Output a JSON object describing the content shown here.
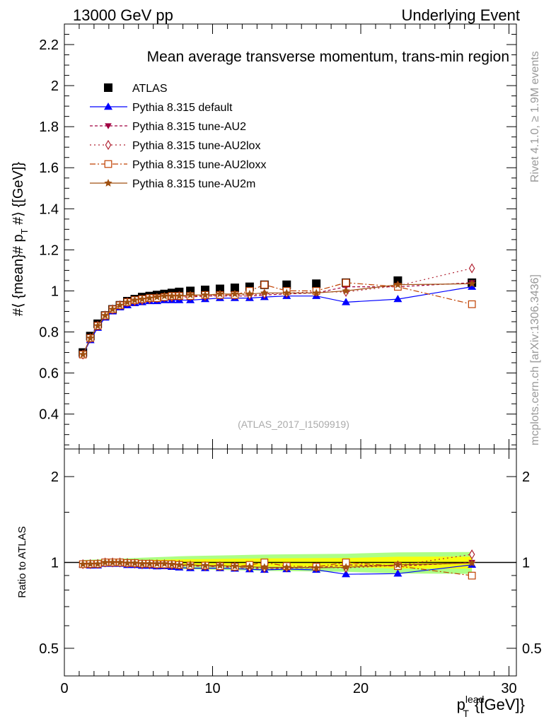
{
  "header": {
    "left": "13000 GeV pp",
    "right": "Underlying Event"
  },
  "side_labels": {
    "top": "Rivet 4.1.0, ≥ 1.9M events",
    "bottom": "mcplots.cern.ch [arXiv:1306.3436]"
  },
  "colors": {
    "atlas": "#000000",
    "default": "#0000ff",
    "au2": "#a00040",
    "au2lox": "#b02030",
    "au2loxx": "#c04000",
    "au2m": "#a05010",
    "band_inner": "#ffff00",
    "band_outer": "#99ff66"
  },
  "chart_data": [
    {
      "type": "line",
      "title": "Mean average transverse momentum, trans-min region",
      "watermark": "(ATLAS_2017_I1509919)",
      "ylabel": "#⟨ {mean}# p_T #⟩ {[GeV]}",
      "ylabel_parts": {
        "pre": "#⟨ {mean}# p",
        "sub": "T",
        "post": " #⟩ {[GeV]}"
      },
      "xlim": [
        0,
        30.5
      ],
      "ylim": [
        0.23,
        2.3
      ],
      "y_ticks": [
        0.4,
        0.6,
        0.8,
        1,
        1.2,
        1.4,
        1.6,
        1.8,
        2,
        2.2
      ],
      "y_tick_labels": [
        "0.4",
        "0.6",
        "0.8",
        "1",
        "1.2",
        "1.4",
        "1.6",
        "1.8",
        "2",
        "2.2"
      ],
      "x": [
        1.25,
        1.75,
        2.25,
        2.75,
        3.25,
        3.75,
        4.25,
        4.75,
        5.25,
        5.75,
        6.25,
        6.75,
        7.25,
        7.75,
        8.5,
        9.5,
        10.5,
        11.5,
        12.5,
        13.5,
        15,
        17,
        19,
        22.5,
        27.5
      ],
      "series": [
        {
          "name": "ATLAS",
          "key": "atlas",
          "marker": "square",
          "values": [
            0.7,
            0.78,
            0.84,
            0.88,
            0.91,
            0.93,
            0.95,
            0.96,
            0.97,
            0.975,
            0.98,
            0.985,
            0.99,
            0.995,
            1.0,
            1.005,
            1.01,
            1.015,
            1.02,
            1.03,
            1.03,
            1.035,
            1.04,
            1.05,
            1.04
          ]
        },
        {
          "name": "Pythia 8.315 default",
          "key": "default",
          "marker": "triangle-up",
          "values": [
            0.69,
            0.76,
            0.82,
            0.87,
            0.9,
            0.92,
            0.93,
            0.94,
            0.945,
            0.95,
            0.95,
            0.955,
            0.955,
            0.955,
            0.955,
            0.96,
            0.965,
            0.965,
            0.965,
            0.97,
            0.975,
            0.975,
            0.945,
            0.96,
            1.02
          ]
        },
        {
          "name": "Pythia 8.315 tune-AU2",
          "key": "au2",
          "marker": "triangle-down",
          "values": [
            0.69,
            0.77,
            0.83,
            0.88,
            0.91,
            0.93,
            0.94,
            0.95,
            0.955,
            0.96,
            0.965,
            0.965,
            0.97,
            0.97,
            0.97,
            0.975,
            0.975,
            0.975,
            0.975,
            0.98,
            0.985,
            0.99,
            1.02,
            1.02,
            1.04
          ]
        },
        {
          "name": "Pythia 8.315 tune-AU2lox",
          "key": "au2lox",
          "marker": "diamond-open",
          "values": [
            0.69,
            0.77,
            0.83,
            0.88,
            0.91,
            0.93,
            0.945,
            0.95,
            0.955,
            0.96,
            0.965,
            0.97,
            0.97,
            0.975,
            0.975,
            0.975,
            0.98,
            0.98,
            0.98,
            0.985,
            0.99,
            0.995,
            0.995,
            1.025,
            1.11
          ]
        },
        {
          "name": "Pythia 8.315 tune-AU2loxx",
          "key": "au2loxx",
          "marker": "square-open",
          "values": [
            0.69,
            0.77,
            0.83,
            0.88,
            0.91,
            0.93,
            0.945,
            0.955,
            0.96,
            0.965,
            0.965,
            0.97,
            0.975,
            0.975,
            0.975,
            0.98,
            0.98,
            0.98,
            1.0,
            1.03,
            1.0,
            1.0,
            1.04,
            1.02,
            0.935
          ]
        },
        {
          "name": "Pythia 8.315 tune-AU2m",
          "key": "au2m",
          "marker": "star",
          "values": [
            0.69,
            0.77,
            0.83,
            0.88,
            0.91,
            0.93,
            0.945,
            0.955,
            0.96,
            0.965,
            0.97,
            0.975,
            0.975,
            0.975,
            0.98,
            0.98,
            0.985,
            0.985,
            0.985,
            0.99,
            0.99,
            0.99,
            1.0,
            1.03,
            1.035
          ]
        }
      ]
    },
    {
      "type": "line",
      "title": "",
      "ylabel": "Ratio to ATLAS",
      "xlabel": "p_T^lead {[GeV]}",
      "xlabel_parts": {
        "main": "p",
        "sub": "T",
        "sup": "lead",
        "post": " {[GeV]}"
      },
      "xlim": [
        0,
        30.5
      ],
      "ylim": [
        0.4,
        2.5
      ],
      "y_ticks": [
        0.5,
        1,
        2
      ],
      "y_tick_labels": [
        "0.5",
        "1",
        "2"
      ],
      "x_ticks": [
        0,
        10,
        20,
        30
      ],
      "x_tick_labels": [
        "0",
        "10",
        "20",
        "30"
      ],
      "x": [
        1.25,
        1.75,
        2.25,
        2.75,
        3.25,
        3.75,
        4.25,
        4.75,
        5.25,
        5.75,
        6.25,
        6.75,
        7.25,
        7.75,
        8.5,
        9.5,
        10.5,
        11.5,
        12.5,
        13.5,
        15,
        17,
        19,
        22.5,
        27.5
      ],
      "series": [
        {
          "name": "Pythia 8.315 default",
          "key": "default",
          "marker": "triangle-up",
          "values": [
            0.985,
            0.975,
            0.976,
            0.989,
            0.989,
            0.989,
            0.979,
            0.979,
            0.974,
            0.974,
            0.969,
            0.97,
            0.965,
            0.96,
            0.955,
            0.955,
            0.955,
            0.951,
            0.946,
            0.942,
            0.947,
            0.942,
            0.909,
            0.914,
            0.981
          ]
        },
        {
          "name": "Pythia 8.315 tune-AU2",
          "key": "au2",
          "marker": "triangle-down",
          "values": [
            0.986,
            0.987,
            0.988,
            1.0,
            1.0,
            1.0,
            0.989,
            0.99,
            0.985,
            0.985,
            0.985,
            0.98,
            0.98,
            0.975,
            0.97,
            0.97,
            0.965,
            0.961,
            0.956,
            0.951,
            0.956,
            0.957,
            0.981,
            0.971,
            1.0
          ]
        },
        {
          "name": "Pythia 8.315 tune-AU2lox",
          "key": "au2lox",
          "marker": "diamond-open",
          "values": [
            0.986,
            0.987,
            0.988,
            1.0,
            1.0,
            1.0,
            0.995,
            0.99,
            0.985,
            0.985,
            0.985,
            0.985,
            0.98,
            0.98,
            0.975,
            0.97,
            0.97,
            0.966,
            0.961,
            0.956,
            0.961,
            0.961,
            0.957,
            0.976,
            1.067
          ]
        },
        {
          "name": "Pythia 8.315 tune-AU2loxx",
          "key": "au2loxx",
          "marker": "square-open",
          "values": [
            0.986,
            0.987,
            0.988,
            1.0,
            1.0,
            1.0,
            0.995,
            0.995,
            0.99,
            0.99,
            0.985,
            0.985,
            0.985,
            0.98,
            0.975,
            0.975,
            0.97,
            0.966,
            0.98,
            1.0,
            0.971,
            0.966,
            1.0,
            0.971,
            0.899
          ]
        },
        {
          "name": "Pythia 8.315 tune-AU2m",
          "key": "au2m",
          "marker": "star",
          "values": [
            0.986,
            0.987,
            0.988,
            1.0,
            1.0,
            1.0,
            0.995,
            0.995,
            0.99,
            0.99,
            0.99,
            0.99,
            0.985,
            0.98,
            0.98,
            0.975,
            0.975,
            0.97,
            0.966,
            0.961,
            0.961,
            0.957,
            0.962,
            0.981,
            0.995
          ]
        }
      ]
    }
  ]
}
